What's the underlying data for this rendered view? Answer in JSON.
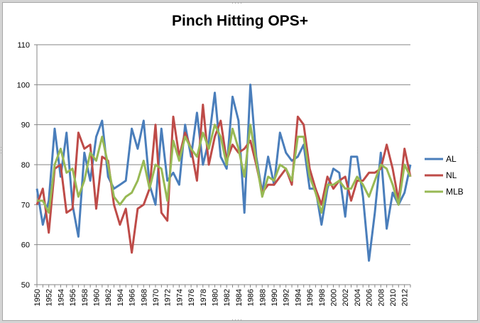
{
  "chart_data": {
    "type": "line",
    "title": "Pinch Hitting OPS+",
    "xlabel": "",
    "ylabel": "",
    "x": [
      1950,
      1951,
      1952,
      1953,
      1954,
      1955,
      1956,
      1957,
      1958,
      1959,
      1960,
      1961,
      1962,
      1963,
      1964,
      1965,
      1966,
      1967,
      1968,
      1969,
      1970,
      1971,
      1972,
      1973,
      1974,
      1975,
      1976,
      1977,
      1978,
      1979,
      1980,
      1981,
      1982,
      1983,
      1984,
      1985,
      1986,
      1987,
      1988,
      1989,
      1990,
      1991,
      1992,
      1993,
      1994,
      1995,
      1996,
      1997,
      1998,
      1999,
      2000,
      2001,
      2002,
      2003,
      2004,
      2005,
      2006,
      2007,
      2008,
      2009,
      2010,
      2011,
      2012,
      2013
    ],
    "x_tick_labels": [
      "1950",
      "1952",
      "1954",
      "1956",
      "1958",
      "1960",
      "1962",
      "1964",
      "1966",
      "1968",
      "1970",
      "1972",
      "1974",
      "1976",
      "1978",
      "1980",
      "1982",
      "1984",
      "1986",
      "1988",
      "1990",
      "1992",
      "1994",
      "1996",
      "1998",
      "2000",
      "2002",
      "2004",
      "2006",
      "2008",
      "2010",
      "2012"
    ],
    "ylim": [
      50,
      110
    ],
    "y_ticks": [
      50,
      60,
      70,
      80,
      90,
      100,
      110
    ],
    "grid": "horizontal",
    "legend_position": "right",
    "series": [
      {
        "name": "AL",
        "color": "#4a7ebb",
        "values": [
          74,
          65,
          71,
          89,
          77,
          88,
          70,
          62,
          83,
          76,
          87,
          91,
          77,
          74,
          75,
          76,
          89,
          84,
          91,
          75,
          70,
          89,
          76,
          78,
          75,
          90,
          82,
          93,
          80,
          86,
          98,
          82,
          79,
          97,
          91,
          68,
          100,
          82,
          73,
          82,
          75,
          88,
          83,
          81,
          82,
          85,
          74,
          74,
          65,
          74,
          79,
          78,
          67,
          82,
          82,
          72,
          56,
          68,
          83,
          64,
          73,
          70,
          73,
          80
        ]
      },
      {
        "name": "NL",
        "color": "#be4b48",
        "values": [
          70,
          74,
          63,
          79,
          80,
          68,
          69,
          88,
          84,
          85,
          69,
          82,
          81,
          70,
          65,
          69,
          58,
          69,
          70,
          74,
          90,
          68,
          66,
          92,
          82,
          88,
          84,
          76,
          95,
          80,
          87,
          91,
          81,
          85,
          83,
          84,
          86,
          80,
          73,
          75,
          75,
          77,
          79,
          75,
          92,
          90,
          79,
          74,
          70,
          77,
          74,
          76,
          77,
          71,
          76,
          76,
          78,
          78,
          79,
          85,
          79,
          71,
          84,
          77
        ]
      },
      {
        "name": "MLB",
        "color": "#98b954",
        "values": [
          71,
          71,
          68,
          80,
          84,
          78,
          79,
          72,
          76,
          83,
          81,
          87,
          80,
          72,
          70,
          72,
          73,
          76,
          81,
          74,
          80,
          79,
          71,
          86,
          81,
          87,
          84,
          82,
          88,
          84,
          90,
          87,
          80,
          89,
          84,
          77,
          90,
          81,
          72,
          77,
          76,
          80,
          79,
          76,
          87,
          87,
          77,
          73,
          68,
          75,
          75,
          76,
          74,
          74,
          77,
          75,
          72,
          76,
          80,
          79,
          75,
          70,
          80,
          77
        ]
      }
    ]
  }
}
